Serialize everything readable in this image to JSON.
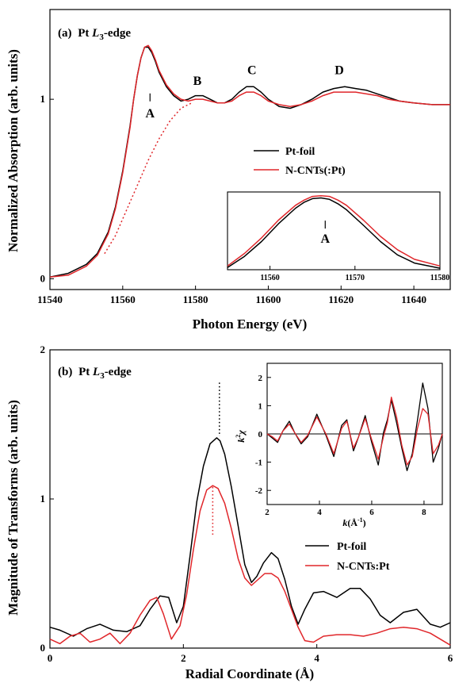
{
  "chart_data": [
    {
      "type": "line",
      "panel_label": "(a)",
      "panel_title_prefix": "Pt ",
      "panel_title_italic": "L",
      "panel_title_sub": "3",
      "panel_title_suffix": "-edge",
      "xlabel": "Photon Energy (eV)",
      "ylabel": "Normalized Absorption (arb. units)",
      "xlim": [
        11540,
        11650
      ],
      "ylim": [
        -0.06,
        1.5
      ],
      "x_ticks": [
        11540,
        11560,
        11580,
        11600,
        11620,
        11640
      ],
      "y_ticks": [
        0,
        1
      ],
      "peak_labels": [
        {
          "text": "A",
          "x": 11567.5,
          "y": 0.9
        },
        {
          "text": "B",
          "x": 11580.5,
          "y": 1.08
        },
        {
          "text": "C",
          "x": 11595.5,
          "y": 1.14
        },
        {
          "text": "D",
          "x": 11619.5,
          "y": 1.14
        }
      ],
      "legend_position": "center-right",
      "series": [
        {
          "name": "Pt-foil",
          "color": "#000000",
          "x": [
            11540,
            11545,
            11550,
            11553,
            11556,
            11558,
            11560,
            11562,
            11563,
            11564,
            11565,
            11566,
            11567,
            11568,
            11569,
            11570,
            11572,
            11574,
            11576,
            11578,
            11580,
            11582,
            11584,
            11586,
            11588,
            11590,
            11592,
            11594,
            11596,
            11598,
            11600,
            11603,
            11606,
            11609,
            11612,
            11615,
            11618,
            11621,
            11624,
            11627,
            11630,
            11633,
            11636,
            11640,
            11645,
            11650
          ],
          "y": [
            0.01,
            0.03,
            0.08,
            0.14,
            0.26,
            0.4,
            0.6,
            0.85,
            1.0,
            1.13,
            1.23,
            1.29,
            1.29,
            1.26,
            1.21,
            1.15,
            1.07,
            1.02,
            0.99,
            1.0,
            1.02,
            1.02,
            1.0,
            0.98,
            0.98,
            1.0,
            1.04,
            1.07,
            1.07,
            1.04,
            1.0,
            0.96,
            0.95,
            0.97,
            1.0,
            1.04,
            1.06,
            1.07,
            1.06,
            1.05,
            1.03,
            1.01,
            0.99,
            0.98,
            0.97,
            0.97
          ]
        },
        {
          "name": "N-CNTs(:Pt)",
          "color": "#e0262a",
          "x": [
            11540,
            11545,
            11550,
            11553,
            11556,
            11558,
            11560,
            11562,
            11563,
            11564,
            11565,
            11566,
            11567,
            11568,
            11569,
            11570,
            11572,
            11574,
            11576,
            11578,
            11580,
            11582,
            11584,
            11586,
            11588,
            11590,
            11592,
            11594,
            11596,
            11598,
            11600,
            11603,
            11606,
            11609,
            11612,
            11615,
            11618,
            11621,
            11624,
            11627,
            11630,
            11633,
            11636,
            11640,
            11645,
            11650
          ],
          "y": [
            0.01,
            0.02,
            0.07,
            0.13,
            0.25,
            0.39,
            0.59,
            0.84,
            1.0,
            1.13,
            1.23,
            1.29,
            1.3,
            1.27,
            1.22,
            1.16,
            1.08,
            1.03,
            1.0,
            0.99,
            1.0,
            1.0,
            0.99,
            0.98,
            0.98,
            0.99,
            1.02,
            1.04,
            1.04,
            1.02,
            0.99,
            0.97,
            0.96,
            0.97,
            0.99,
            1.02,
            1.04,
            1.04,
            1.04,
            1.03,
            1.02,
            1.0,
            0.99,
            0.98,
            0.97,
            0.97
          ]
        },
        {
          "name": "",
          "color": "#e0262a",
          "dashed": true,
          "x": [
            11555,
            11558,
            11561,
            11564,
            11567,
            11570,
            11573,
            11576,
            11579
          ],
          "y": [
            0.14,
            0.24,
            0.38,
            0.52,
            0.66,
            0.78,
            0.88,
            0.95,
            0.98
          ]
        }
      ],
      "inset": {
        "xlim": [
          11555,
          11580
        ],
        "ylim": [
          0.0,
          1.05
        ],
        "x_ticks": [
          11560,
          11570,
          11580
        ],
        "peak_label": {
          "text": "A",
          "x": 11566.5,
          "y": 0.62
        },
        "series": [
          {
            "name": "Pt-foil",
            "color": "#000000",
            "x": [
              11555,
              11557,
              11559,
              11561,
              11563,
              11564,
              11565,
              11566,
              11567,
              11568,
              11569,
              11571,
              11573,
              11575,
              11577,
              11580
            ],
            "y": [
              0.03,
              0.18,
              0.38,
              0.62,
              0.83,
              0.91,
              0.96,
              0.97,
              0.95,
              0.89,
              0.81,
              0.6,
              0.38,
              0.2,
              0.09,
              0.02
            ]
          },
          {
            "name": "N-CNTs(:Pt)",
            "color": "#e0262a",
            "x": [
              11555,
              11557,
              11559,
              11561,
              11563,
              11564,
              11565,
              11566,
              11567,
              11568,
              11569,
              11571,
              11573,
              11575,
              11577,
              11580
            ],
            "y": [
              0.05,
              0.22,
              0.43,
              0.67,
              0.87,
              0.94,
              0.99,
              1.0,
              0.99,
              0.94,
              0.87,
              0.67,
              0.45,
              0.27,
              0.14,
              0.05
            ]
          }
        ]
      }
    },
    {
      "type": "line",
      "panel_label": "(b)",
      "panel_title_prefix": "Pt ",
      "panel_title_italic": "L",
      "panel_title_sub": "3",
      "panel_title_suffix": "-edge",
      "xlabel": "Radial Coordinate (Å)",
      "ylabel": "Magnitude of Transforms (arb. units)",
      "xlim": [
        0,
        6
      ],
      "ylim": [
        0,
        2
      ],
      "x_ticks": [
        0,
        2,
        4,
        6
      ],
      "y_ticks": [
        0,
        1,
        2
      ],
      "legend_position": "center-right",
      "peak_markers": [
        {
          "x": 2.54,
          "y0": 1.42,
          "y1": 1.78,
          "color": "#000000"
        },
        {
          "x": 2.44,
          "y0": 0.75,
          "y1": 1.08,
          "color": "#e0262a"
        }
      ],
      "series": [
        {
          "name": "Pt-foil",
          "color": "#000000",
          "x": [
            0,
            0.15,
            0.35,
            0.55,
            0.75,
            0.95,
            1.15,
            1.35,
            1.5,
            1.65,
            1.78,
            1.9,
            2.0,
            2.1,
            2.2,
            2.3,
            2.4,
            2.5,
            2.55,
            2.62,
            2.72,
            2.82,
            2.92,
            3.02,
            3.1,
            3.2,
            3.32,
            3.42,
            3.52,
            3.62,
            3.72,
            3.82,
            3.95,
            4.1,
            4.3,
            4.5,
            4.65,
            4.8,
            4.95,
            5.1,
            5.3,
            5.5,
            5.7,
            5.85,
            6.0
          ],
          "y": [
            0.14,
            0.12,
            0.08,
            0.13,
            0.16,
            0.12,
            0.11,
            0.15,
            0.26,
            0.35,
            0.34,
            0.17,
            0.28,
            0.62,
            0.98,
            1.22,
            1.37,
            1.41,
            1.39,
            1.3,
            1.08,
            0.82,
            0.56,
            0.44,
            0.48,
            0.57,
            0.64,
            0.6,
            0.46,
            0.28,
            0.16,
            0.26,
            0.37,
            0.38,
            0.34,
            0.4,
            0.4,
            0.33,
            0.22,
            0.17,
            0.24,
            0.26,
            0.16,
            0.14,
            0.17
          ]
        },
        {
          "name": "N-CNTs:Pt",
          "color": "#e0262a",
          "x": [
            0,
            0.15,
            0.3,
            0.45,
            0.6,
            0.75,
            0.9,
            1.05,
            1.2,
            1.35,
            1.5,
            1.6,
            1.7,
            1.82,
            1.95,
            2.05,
            2.15,
            2.25,
            2.35,
            2.44,
            2.52,
            2.62,
            2.72,
            2.82,
            2.92,
            3.02,
            3.12,
            3.22,
            3.32,
            3.42,
            3.52,
            3.62,
            3.72,
            3.82,
            3.95,
            4.1,
            4.3,
            4.5,
            4.7,
            4.9,
            5.1,
            5.3,
            5.5,
            5.7,
            5.85,
            6.0
          ],
          "y": [
            0.06,
            0.03,
            0.08,
            0.1,
            0.04,
            0.06,
            0.1,
            0.03,
            0.1,
            0.22,
            0.32,
            0.34,
            0.23,
            0.06,
            0.15,
            0.36,
            0.66,
            0.92,
            1.06,
            1.09,
            1.07,
            0.97,
            0.8,
            0.6,
            0.47,
            0.42,
            0.46,
            0.5,
            0.5,
            0.47,
            0.38,
            0.26,
            0.14,
            0.05,
            0.04,
            0.08,
            0.09,
            0.09,
            0.08,
            0.1,
            0.13,
            0.14,
            0.13,
            0.1,
            0.06,
            0.02
          ]
        }
      ],
      "inset": {
        "xlabel_italic": "k",
        "xlabel_rest": "(Å",
        "xlabel_sup": "-1",
        "xlabel_close": ")",
        "ylabel_k": "k",
        "ylabel_sup": "2",
        "ylabel_chi": "χ",
        "xlim": [
          2,
          8.7
        ],
        "ylim": [
          -2.5,
          2.5
        ],
        "x_ticks": [
          2,
          4,
          6,
          8
        ],
        "y_ticks": [
          -2,
          -1,
          0,
          1,
          2
        ],
        "series": [
          {
            "name": "Pt-foil",
            "color": "#000000",
            "x": [
              2.0,
              2.2,
              2.4,
              2.6,
              2.85,
              3.05,
              3.3,
              3.55,
              3.9,
              4.25,
              4.55,
              4.85,
              5.05,
              5.3,
              5.5,
              5.75,
              6.0,
              6.25,
              6.45,
              6.6,
              6.75,
              6.95,
              7.15,
              7.35,
              7.55,
              7.75,
              7.95,
              8.15,
              8.35,
              8.55,
              8.7
            ],
            "y": [
              0.0,
              -0.15,
              -0.3,
              0.1,
              0.45,
              0.05,
              -0.35,
              -0.1,
              0.7,
              -0.05,
              -0.8,
              0.3,
              0.5,
              -0.6,
              -0.1,
              0.65,
              -0.3,
              -1.1,
              0.05,
              0.5,
              1.2,
              0.4,
              -0.5,
              -1.3,
              -0.7,
              0.5,
              1.8,
              0.9,
              -1.0,
              -0.5,
              0.0
            ]
          },
          {
            "name": "N-CNTs:Pt",
            "color": "#e0262a",
            "x": [
              2.0,
              2.2,
              2.4,
              2.6,
              2.85,
              3.05,
              3.3,
              3.55,
              3.9,
              4.25,
              4.55,
              4.85,
              5.05,
              5.3,
              5.5,
              5.75,
              6.0,
              6.25,
              6.45,
              6.6,
              6.75,
              6.95,
              7.15,
              7.35,
              7.55,
              7.75,
              7.95,
              8.15,
              8.35,
              8.55,
              8.7
            ],
            "y": [
              0.0,
              -0.1,
              -0.25,
              0.1,
              0.35,
              0.05,
              -0.3,
              -0.05,
              0.6,
              0.0,
              -0.7,
              0.2,
              0.45,
              -0.5,
              -0.1,
              0.55,
              -0.2,
              -0.9,
              -0.1,
              0.4,
              1.3,
              0.6,
              -0.4,
              -1.1,
              -0.8,
              0.2,
              0.9,
              0.7,
              -0.7,
              -0.4,
              0.0
            ]
          }
        ]
      }
    }
  ]
}
